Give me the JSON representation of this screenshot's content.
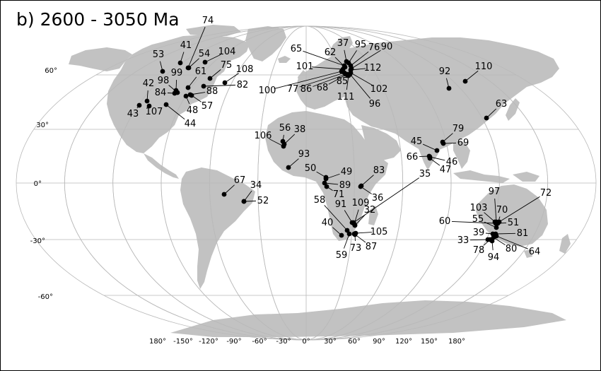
{
  "title": "b)  2600 - 3050 Ma",
  "lat_labels": [
    "60°",
    "30°",
    "0°",
    "-30°",
    "-60°"
  ],
  "lon_labels": [
    "180°",
    "-150°",
    "-120°",
    "-90°",
    "-60°",
    "-30°",
    "0°",
    "30°",
    "60°",
    "90°",
    "120°",
    "150°",
    "180°"
  ],
  "sites": [
    {
      "id": "74"
    },
    {
      "id": "41"
    },
    {
      "id": "53"
    },
    {
      "id": "54"
    },
    {
      "id": "104"
    },
    {
      "id": "75"
    },
    {
      "id": "108"
    },
    {
      "id": "61"
    },
    {
      "id": "99"
    },
    {
      "id": "98"
    },
    {
      "id": "42"
    },
    {
      "id": "84"
    },
    {
      "id": "82"
    },
    {
      "id": "88"
    },
    {
      "id": "57"
    },
    {
      "id": "48"
    },
    {
      "id": "43"
    },
    {
      "id": "107"
    },
    {
      "id": "44"
    },
    {
      "id": "37"
    },
    {
      "id": "95"
    },
    {
      "id": "76"
    },
    {
      "id": "90"
    },
    {
      "id": "65"
    },
    {
      "id": "62"
    },
    {
      "id": "101"
    },
    {
      "id": "112"
    },
    {
      "id": "100"
    },
    {
      "id": "77"
    },
    {
      "id": "86"
    },
    {
      "id": "68"
    },
    {
      "id": "85"
    },
    {
      "id": "102"
    },
    {
      "id": "111"
    },
    {
      "id": "96"
    },
    {
      "id": "92"
    },
    {
      "id": "110"
    },
    {
      "id": "63"
    },
    {
      "id": "56"
    },
    {
      "id": "38"
    },
    {
      "id": "106"
    },
    {
      "id": "93"
    },
    {
      "id": "79"
    },
    {
      "id": "69"
    },
    {
      "id": "45"
    },
    {
      "id": "66"
    },
    {
      "id": "46"
    },
    {
      "id": "47"
    },
    {
      "id": "50"
    },
    {
      "id": "49"
    },
    {
      "id": "83"
    },
    {
      "id": "89"
    },
    {
      "id": "71"
    },
    {
      "id": "36"
    },
    {
      "id": "35"
    },
    {
      "id": "58"
    },
    {
      "id": "91"
    },
    {
      "id": "109"
    },
    {
      "id": "32"
    },
    {
      "id": "40"
    },
    {
      "id": "105"
    },
    {
      "id": "73"
    },
    {
      "id": "87"
    },
    {
      "id": "59"
    },
    {
      "id": "67"
    },
    {
      "id": "34"
    },
    {
      "id": "52"
    },
    {
      "id": "97"
    },
    {
      "id": "72"
    },
    {
      "id": "103"
    },
    {
      "id": "70"
    },
    {
      "id": "60"
    },
    {
      "id": "55"
    },
    {
      "id": "51"
    },
    {
      "id": "39"
    },
    {
      "id": "81"
    },
    {
      "id": "33"
    },
    {
      "id": "80"
    },
    {
      "id": "78"
    },
    {
      "id": "94"
    },
    {
      "id": "64"
    }
  ]
}
